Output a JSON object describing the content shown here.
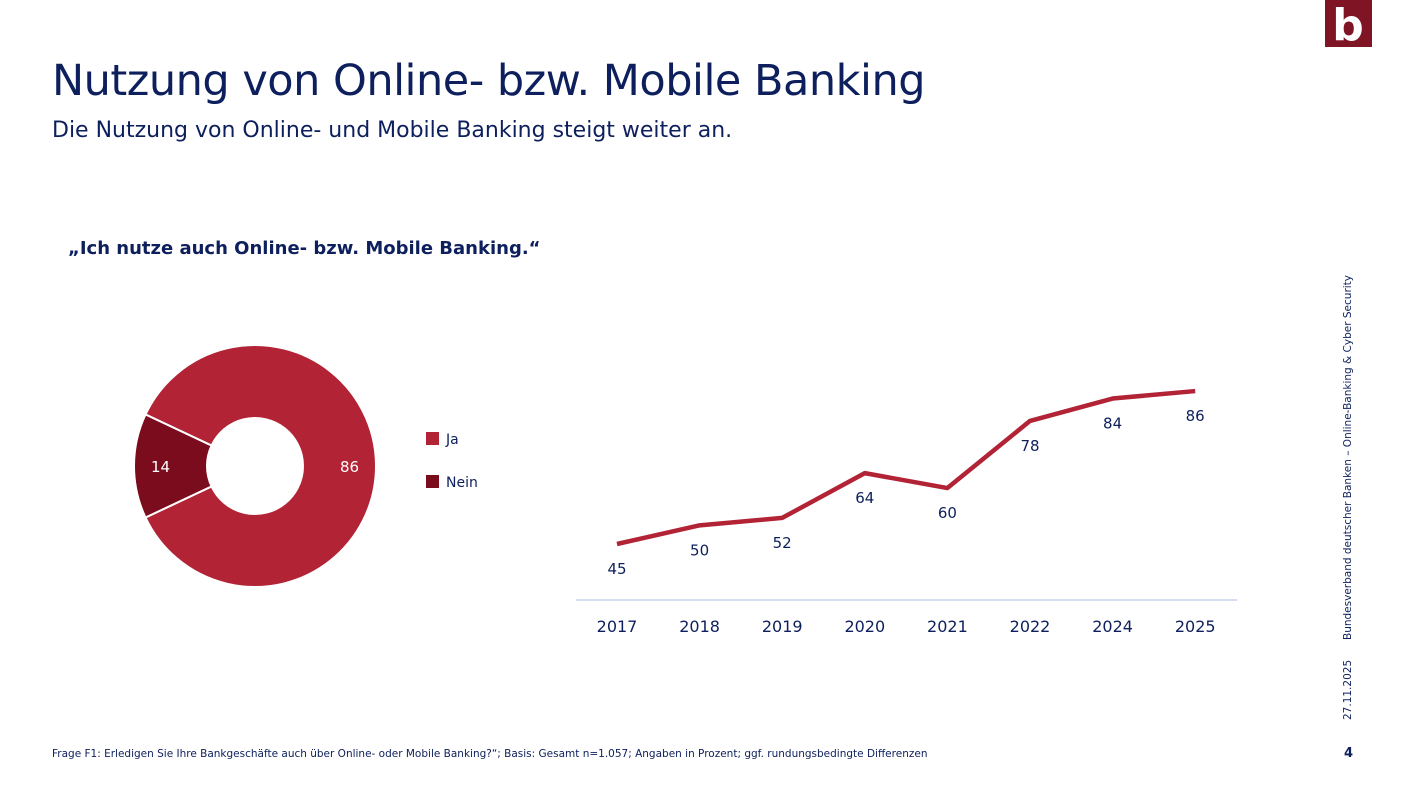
{
  "header": {
    "title": "Nutzung von Online- bzw. Mobile Banking",
    "subtitle": "Die Nutzung von Online- und Mobile Banking steigt weiter an.",
    "logo_text": "b"
  },
  "quote": "„Ich nutze auch Online- bzw. Mobile Banking.“",
  "side": {
    "org": "Bundesverband deutscher Banken – Online-Banking & Cyber Security",
    "date": "27.11.2025"
  },
  "footer": {
    "note": "Frage F1: Erledigen Sie Ihre Bankgeschäfte auch über Online- oder Mobile Banking?“; Basis: Gesamt n=1.057; Angaben in Prozent; ggf. rundungsbedingte Differenzen",
    "page": "4"
  },
  "colors": {
    "text": "#0d1f5c",
    "ja": "#b22435",
    "nein": "#7a0c1e",
    "axis": "#c5d3ea"
  },
  "chart_data": [
    {
      "type": "pie",
      "variant": "donut",
      "categories": [
        "Ja",
        "Nein"
      ],
      "values": [
        86,
        14
      ],
      "legend": "right"
    },
    {
      "type": "line",
      "categories": [
        "2017",
        "2018",
        "2019",
        "2020",
        "2021",
        "2022",
        "2024",
        "2025"
      ],
      "values": [
        45,
        50,
        52,
        64,
        60,
        78,
        84,
        86
      ],
      "grid": false
    }
  ]
}
